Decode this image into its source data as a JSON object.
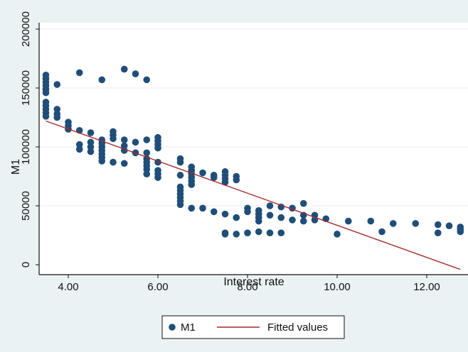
{
  "chart_data": {
    "type": "scatter",
    "title": "",
    "xlabel": "Interest rate",
    "ylabel": "M1",
    "xlim": [
      3.5,
      12.75
    ],
    "ylim": [
      0,
      200000
    ],
    "x_ticks": [
      4,
      6,
      8,
      10,
      12
    ],
    "x_tick_labels": [
      "4.00",
      "6.00",
      "8.00",
      "10.00",
      "12.00"
    ],
    "y_ticks": [
      0,
      50000,
      100000,
      150000,
      200000
    ],
    "y_tick_labels": [
      "0",
      "50000",
      "100000",
      "150000",
      "200000"
    ],
    "grid": "horizontal",
    "legend_position": "bottom",
    "colors": {
      "background": "#eaf2f3",
      "plot_area": "#ffffff",
      "gridline": "#e8eef0",
      "points": "#1f4e79",
      "fitted_line": "#a52a2a"
    },
    "series": [
      {
        "name": "M1",
        "kind": "scatter",
        "points": [
          [
            3.5,
            161000
          ],
          [
            3.5,
            158000
          ],
          [
            3.5,
            155000
          ],
          [
            3.5,
            152000
          ],
          [
            3.5,
            149000
          ],
          [
            3.5,
            146000
          ],
          [
            3.5,
            138000
          ],
          [
            3.5,
            135000
          ],
          [
            3.5,
            132000
          ],
          [
            3.5,
            129000
          ],
          [
            3.5,
            126000
          ],
          [
            3.75,
            153000
          ],
          [
            3.75,
            132000
          ],
          [
            3.75,
            128000
          ],
          [
            3.75,
            125000
          ],
          [
            4.0,
            121000
          ],
          [
            4.0,
            118000
          ],
          [
            4.0,
            115000
          ],
          [
            4.25,
            163000
          ],
          [
            4.25,
            114000
          ],
          [
            4.25,
            102000
          ],
          [
            4.25,
            98000
          ],
          [
            4.5,
            112000
          ],
          [
            4.5,
            104000
          ],
          [
            4.5,
            100000
          ],
          [
            4.5,
            96000
          ],
          [
            4.75,
            157000
          ],
          [
            4.75,
            106000
          ],
          [
            4.75,
            103000
          ],
          [
            4.75,
            100000
          ],
          [
            4.75,
            97000
          ],
          [
            4.75,
            94000
          ],
          [
            4.75,
            91000
          ],
          [
            4.75,
            88000
          ],
          [
            5.0,
            113000
          ],
          [
            5.0,
            110000
          ],
          [
            5.0,
            107000
          ],
          [
            5.0,
            87000
          ],
          [
            5.25,
            166000
          ],
          [
            5.25,
            106000
          ],
          [
            5.25,
            101000
          ],
          [
            5.25,
            97000
          ],
          [
            5.25,
            86000
          ],
          [
            5.5,
            162000
          ],
          [
            5.5,
            104000
          ],
          [
            5.5,
            95000
          ],
          [
            5.75,
            157000
          ],
          [
            5.75,
            106000
          ],
          [
            5.75,
            95000
          ],
          [
            5.75,
            90000
          ],
          [
            5.75,
            87000
          ],
          [
            5.75,
            84000
          ],
          [
            5.75,
            81000
          ],
          [
            5.75,
            77000
          ],
          [
            6.0,
            108000
          ],
          [
            6.0,
            105000
          ],
          [
            6.0,
            102000
          ],
          [
            6.0,
            99000
          ],
          [
            6.0,
            87000
          ],
          [
            6.0,
            80000
          ],
          [
            6.0,
            77000
          ],
          [
            6.0,
            74000
          ],
          [
            6.5,
            90000
          ],
          [
            6.5,
            87000
          ],
          [
            6.5,
            76000
          ],
          [
            6.5,
            66000
          ],
          [
            6.5,
            63000
          ],
          [
            6.5,
            60000
          ],
          [
            6.5,
            57000
          ],
          [
            6.5,
            54000
          ],
          [
            6.5,
            51000
          ],
          [
            6.75,
            83000
          ],
          [
            6.75,
            80000
          ],
          [
            6.75,
            77000
          ],
          [
            6.75,
            74000
          ],
          [
            6.75,
            71000
          ],
          [
            6.75,
            68000
          ],
          [
            6.75,
            48000
          ],
          [
            7.0,
            78000
          ],
          [
            7.0,
            48000
          ],
          [
            7.25,
            76000
          ],
          [
            7.25,
            74000
          ],
          [
            7.25,
            45000
          ],
          [
            7.5,
            79000
          ],
          [
            7.5,
            76000
          ],
          [
            7.5,
            73000
          ],
          [
            7.5,
            70000
          ],
          [
            7.5,
            43000
          ],
          [
            7.5,
            27000
          ],
          [
            7.5,
            26000
          ],
          [
            7.75,
            75000
          ],
          [
            7.75,
            72000
          ],
          [
            7.75,
            40000
          ],
          [
            7.75,
            26000
          ],
          [
            8.0,
            48000
          ],
          [
            8.0,
            45000
          ],
          [
            8.0,
            27000
          ],
          [
            8.25,
            46000
          ],
          [
            8.25,
            43000
          ],
          [
            8.25,
            40000
          ],
          [
            8.25,
            37000
          ],
          [
            8.25,
            28000
          ],
          [
            8.5,
            50000
          ],
          [
            8.5,
            42000
          ],
          [
            8.5,
            27000
          ],
          [
            8.75,
            49000
          ],
          [
            8.75,
            40000
          ],
          [
            8.75,
            27000
          ],
          [
            9.0,
            48000
          ],
          [
            9.0,
            38000
          ],
          [
            9.25,
            52000
          ],
          [
            9.25,
            42000
          ],
          [
            9.25,
            37000
          ],
          [
            9.5,
            42000
          ],
          [
            9.5,
            38000
          ],
          [
            9.75,
            39000
          ],
          [
            10.0,
            26000
          ],
          [
            10.25,
            37000
          ],
          [
            10.75,
            37000
          ],
          [
            11.0,
            28000
          ],
          [
            11.25,
            35000
          ],
          [
            11.75,
            35000
          ],
          [
            12.25,
            34000
          ],
          [
            12.25,
            27000
          ],
          [
            12.5,
            33000
          ],
          [
            12.75,
            32000
          ],
          [
            12.75,
            30000
          ],
          [
            12.75,
            28000
          ]
        ]
      },
      {
        "name": "Fitted values",
        "kind": "line",
        "points": [
          [
            3.5,
            122000
          ],
          [
            12.75,
            -4000
          ]
        ]
      }
    ]
  }
}
